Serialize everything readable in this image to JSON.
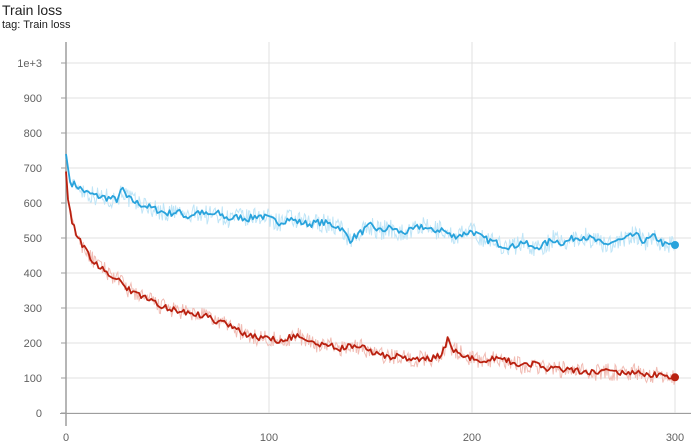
{
  "title": "Train loss",
  "tag": {
    "label": "tag:",
    "value": "Train loss"
  },
  "colors": {
    "blue_series": "#29a3dc",
    "blue_series_raw": "#bfe5f7",
    "red_series": "#b9200f",
    "red_series_raw": "#f1bcb4",
    "grid": "#e0e0e0",
    "axis": "#9e9e9e",
    "tick_text": "#616161"
  },
  "chart_data": {
    "type": "line",
    "title": "Train loss",
    "xlabel": "",
    "ylabel": "",
    "xlim": [
      0,
      300
    ],
    "ylim": [
      0,
      1000
    ],
    "x_ticks": [
      0,
      100,
      200,
      300
    ],
    "y_ticks": [
      0,
      100,
      200,
      300,
      400,
      500,
      600,
      700,
      800,
      900,
      1000
    ],
    "y_tick_labels": [
      "0",
      "100",
      "200",
      "300",
      "400",
      "500",
      "600",
      "700",
      "800",
      "900",
      "1e+3"
    ],
    "grid": true,
    "legend": "none",
    "series": [
      {
        "color": "#29a3dc",
        "x": [
          0,
          2,
          5,
          10,
          15,
          20,
          25,
          28,
          30,
          35,
          40,
          45,
          50,
          55,
          60,
          65,
          70,
          75,
          80,
          85,
          90,
          95,
          100,
          105,
          110,
          115,
          120,
          125,
          130,
          135,
          140,
          145,
          150,
          155,
          160,
          165,
          170,
          175,
          180,
          185,
          190,
          195,
          200,
          205,
          210,
          215,
          220,
          225,
          230,
          235,
          240,
          245,
          250,
          255,
          260,
          265,
          270,
          275,
          280,
          285,
          290,
          295,
          300
        ],
        "values": [
          740,
          660,
          650,
          630,
          620,
          615,
          610,
          640,
          615,
          600,
          590,
          580,
          570,
          575,
          560,
          575,
          565,
          570,
          555,
          560,
          555,
          565,
          555,
          545,
          555,
          545,
          540,
          545,
          540,
          530,
          495,
          515,
          535,
          520,
          530,
          515,
          520,
          535,
          520,
          525,
          505,
          510,
          520,
          500,
          490,
          480,
          475,
          490,
          470,
          480,
          495,
          485,
          500,
          505,
          495,
          480,
          490,
          495,
          510,
          490,
          505,
          480,
          480
        ]
      },
      {
        "color": "#b9200f",
        "x": [
          0,
          1,
          3,
          5,
          8,
          10,
          12,
          15,
          20,
          25,
          30,
          35,
          40,
          45,
          50,
          55,
          60,
          65,
          70,
          75,
          80,
          85,
          90,
          95,
          100,
          105,
          110,
          115,
          120,
          125,
          130,
          135,
          140,
          145,
          150,
          155,
          160,
          165,
          170,
          175,
          180,
          185,
          188,
          190,
          195,
          200,
          205,
          210,
          215,
          220,
          225,
          230,
          235,
          240,
          245,
          250,
          255,
          260,
          265,
          270,
          275,
          280,
          285,
          290,
          295,
          300
        ],
        "values": [
          690,
          610,
          550,
          510,
          480,
          465,
          445,
          425,
          405,
          385,
          355,
          340,
          325,
          310,
          300,
          290,
          285,
          280,
          275,
          260,
          255,
          235,
          220,
          215,
          215,
          205,
          215,
          220,
          200,
          195,
          195,
          185,
          190,
          190,
          175,
          165,
          160,
          165,
          150,
          155,
          155,
          165,
          210,
          185,
          170,
          155,
          150,
          155,
          155,
          145,
          135,
          140,
          130,
          125,
          125,
          120,
          120,
          115,
          120,
          115,
          115,
          120,
          105,
          110,
          110,
          102
        ]
      }
    ]
  }
}
